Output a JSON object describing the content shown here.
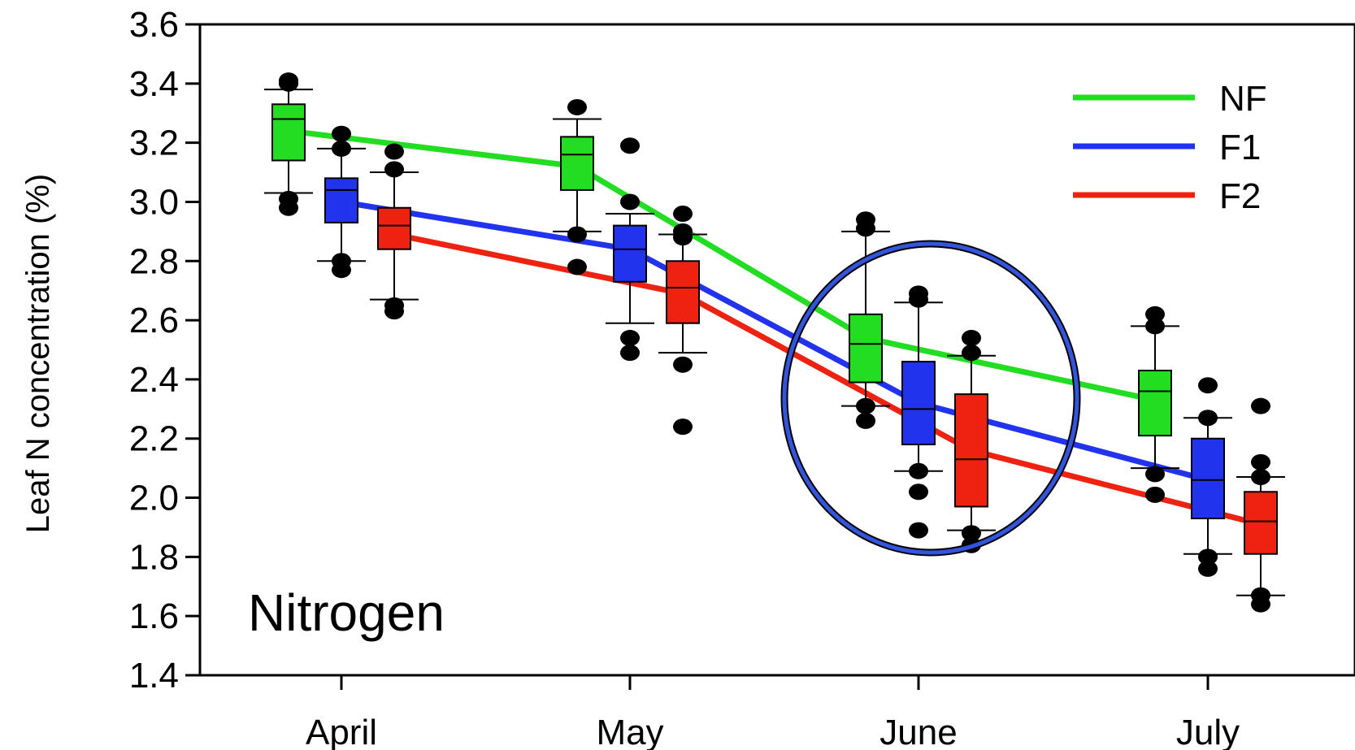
{
  "chart_data": {
    "type": "box",
    "title": "",
    "annotation": "Nitrogen",
    "xlabel": "",
    "ylabel": "Leaf N concentration (%)",
    "ylim": [
      1.4,
      3.6
    ],
    "yticks": [
      1.4,
      1.6,
      1.8,
      2.0,
      2.2,
      2.4,
      2.6,
      2.8,
      3.0,
      3.2,
      3.4,
      3.6
    ],
    "ytick_labels": [
      "1.4",
      "1.6",
      "1.8",
      "2.0",
      "2.2",
      "2.4",
      "2.6",
      "2.8",
      "3.0",
      "3.2",
      "3.4",
      "3.6"
    ],
    "categories": [
      "April",
      "May",
      "June",
      "July"
    ],
    "grid": false,
    "legend_position": "top-right",
    "highlight": {
      "shape": "ellipse",
      "category": "June",
      "color": "#3355dd"
    },
    "series": [
      {
        "name": "NF",
        "color": "#22dd22",
        "mean": [
          3.24,
          3.12,
          2.54,
          2.33
        ],
        "boxes": [
          {
            "q1": 3.14,
            "median": 3.28,
            "q3": 3.33,
            "whisker_low": 3.03,
            "whisker_high": 3.38,
            "outliers": [
              3.41,
              3.4,
              3.01,
              2.98
            ]
          },
          {
            "q1": 3.04,
            "median": 3.16,
            "q3": 3.22,
            "whisker_low": 2.9,
            "whisker_high": 3.28,
            "outliers": [
              3.32,
              2.89,
              2.78
            ]
          },
          {
            "q1": 2.39,
            "median": 2.52,
            "q3": 2.62,
            "whisker_low": 2.31,
            "whisker_high": 2.9,
            "outliers": [
              2.94,
              2.91,
              2.31,
              2.26
            ]
          },
          {
            "q1": 2.21,
            "median": 2.36,
            "q3": 2.43,
            "whisker_low": 2.1,
            "whisker_high": 2.58,
            "outliers": [
              2.62,
              2.58,
              2.08,
              2.01
            ]
          }
        ]
      },
      {
        "name": "F1",
        "color": "#2233ee",
        "mean": [
          3.0,
          2.84,
          2.32,
          2.06
        ],
        "boxes": [
          {
            "q1": 2.93,
            "median": 3.04,
            "q3": 3.08,
            "whisker_low": 2.8,
            "whisker_high": 3.18,
            "outliers": [
              3.23,
              3.18,
              2.8,
              2.77
            ]
          },
          {
            "q1": 2.73,
            "median": 2.84,
            "q3": 2.92,
            "whisker_low": 2.59,
            "whisker_high": 2.96,
            "outliers": [
              3.19,
              3.0,
              2.54,
              2.49
            ]
          },
          {
            "q1": 2.18,
            "median": 2.3,
            "q3": 2.46,
            "whisker_low": 2.09,
            "whisker_high": 2.66,
            "outliers": [
              2.69,
              2.67,
              2.09,
              2.02,
              1.89
            ]
          },
          {
            "q1": 1.93,
            "median": 2.06,
            "q3": 2.2,
            "whisker_low": 1.81,
            "whisker_high": 2.27,
            "outliers": [
              2.38,
              2.27,
              1.8,
              1.76
            ]
          }
        ]
      },
      {
        "name": "F2",
        "color": "#ee2211",
        "mean": [
          2.89,
          2.69,
          2.16,
          1.91
        ],
        "boxes": [
          {
            "q1": 2.84,
            "median": 2.92,
            "q3": 2.98,
            "whisker_low": 2.67,
            "whisker_high": 3.1,
            "outliers": [
              3.17,
              3.11,
              2.65,
              2.63
            ]
          },
          {
            "q1": 2.59,
            "median": 2.71,
            "q3": 2.8,
            "whisker_low": 2.49,
            "whisker_high": 2.89,
            "outliers": [
              2.96,
              2.9,
              2.88,
              2.45,
              2.24
            ]
          },
          {
            "q1": 1.97,
            "median": 2.13,
            "q3": 2.35,
            "whisker_low": 1.89,
            "whisker_high": 2.48,
            "outliers": [
              2.54,
              2.49,
              1.88,
              1.84
            ]
          },
          {
            "q1": 1.81,
            "median": 1.92,
            "q3": 2.02,
            "whisker_low": 1.67,
            "whisker_high": 2.07,
            "outliers": [
              2.31,
              2.12,
              2.07,
              1.67,
              1.64
            ]
          }
        ]
      }
    ]
  }
}
